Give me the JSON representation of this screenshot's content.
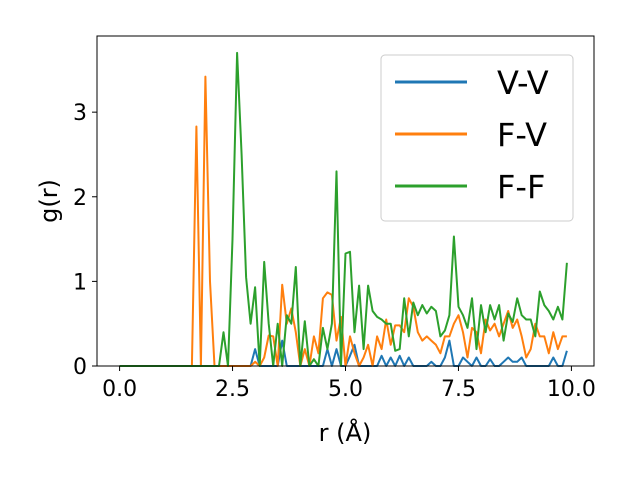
{
  "chart_data": {
    "type": "line",
    "title": "",
    "xlabel": "r (Å)",
    "ylabel": "g(r)",
    "xlim": [
      -0.5,
      10.5
    ],
    "ylim": [
      0,
      3.9
    ],
    "xticks": [
      0.0,
      2.5,
      5.0,
      7.5,
      10.0
    ],
    "xtick_labels": [
      "0.0",
      "2.5",
      "5.0",
      "7.5",
      "10.0"
    ],
    "yticks": [
      0,
      1,
      2,
      3
    ],
    "ytick_labels": [
      "0",
      "1",
      "2",
      "3"
    ],
    "grid": false,
    "legend_position": "top-right",
    "series": [
      {
        "name": "V-V",
        "color": "#1f77b4",
        "x": [
          0.0,
          1.0,
          2.0,
          2.9,
          3.0,
          3.1,
          3.2,
          3.3,
          3.4,
          3.5,
          3.6,
          3.7,
          3.8,
          3.9,
          4.0,
          4.1,
          4.2,
          4.3,
          4.4,
          4.5,
          4.6,
          4.7,
          4.8,
          4.9,
          5.0,
          5.1,
          5.2,
          5.3,
          5.4,
          5.5,
          5.6,
          5.7,
          5.8,
          5.9,
          6.0,
          6.1,
          6.2,
          6.3,
          6.4,
          6.5,
          6.6,
          6.7,
          6.8,
          6.9,
          7.0,
          7.1,
          7.2,
          7.3,
          7.4,
          7.5,
          7.6,
          7.7,
          7.8,
          7.9,
          8.0,
          8.1,
          8.2,
          8.3,
          8.4,
          8.5,
          8.6,
          8.7,
          8.8,
          8.9,
          9.0,
          9.1,
          9.2,
          9.3,
          9.4,
          9.5,
          9.6,
          9.7,
          9.8,
          9.9
        ],
        "values": [
          0,
          0,
          0,
          0,
          0.2,
          0,
          0,
          0,
          0,
          0,
          0.3,
          0,
          0,
          0,
          0,
          0,
          0,
          0,
          0,
          0,
          0.2,
          0,
          0.2,
          0,
          0,
          0.12,
          0.25,
          0,
          0,
          0,
          0,
          0,
          0.12,
          0,
          0.1,
          0,
          0.12,
          0,
          0.1,
          0,
          0,
          0,
          0,
          0.05,
          0,
          0,
          0.1,
          0.3,
          0,
          0,
          0.1,
          0.05,
          0,
          0.1,
          0,
          0,
          0.08,
          0,
          0,
          0.05,
          0.1,
          0.05,
          0.05,
          0.1,
          0,
          0,
          0,
          0,
          0,
          0,
          0.1,
          0,
          0,
          0.18
        ]
      },
      {
        "name": "F-V",
        "color": "#ff7f0e",
        "x": [
          0.0,
          1.0,
          1.6,
          1.7,
          1.8,
          1.9,
          2.0,
          2.1,
          2.2,
          2.3,
          2.4,
          2.5,
          2.6,
          2.7,
          2.8,
          2.9,
          3.0,
          3.1,
          3.2,
          3.3,
          3.4,
          3.5,
          3.6,
          3.7,
          3.8,
          3.9,
          4.0,
          4.1,
          4.2,
          4.3,
          4.4,
          4.5,
          4.6,
          4.7,
          4.8,
          4.9,
          5.0,
          5.1,
          5.2,
          5.3,
          5.4,
          5.5,
          5.6,
          5.7,
          5.8,
          5.9,
          6.0,
          6.1,
          6.2,
          6.3,
          6.4,
          6.5,
          6.6,
          6.7,
          6.8,
          6.9,
          7.0,
          7.1,
          7.2,
          7.3,
          7.4,
          7.5,
          7.6,
          7.7,
          7.8,
          7.9,
          8.0,
          8.1,
          8.2,
          8.3,
          8.4,
          8.5,
          8.6,
          8.7,
          8.8,
          8.9,
          9.0,
          9.1,
          9.2,
          9.3,
          9.4,
          9.5,
          9.6,
          9.7,
          9.8,
          9.9
        ],
        "values": [
          0,
          0,
          0,
          2.83,
          0,
          3.42,
          1.0,
          0,
          0,
          0,
          0,
          0,
          0,
          0,
          0,
          0,
          0.05,
          0,
          0.1,
          0.36,
          0.35,
          0,
          0.96,
          0.5,
          0.68,
          0.4,
          0,
          0.2,
          0,
          0.35,
          0.15,
          0.8,
          0.87,
          0.84,
          0.3,
          0.58,
          0,
          0.35,
          0.15,
          0,
          0.1,
          0.25,
          0,
          0.35,
          0.2,
          0.55,
          0.25,
          0.48,
          0.48,
          0.4,
          0.8,
          0.7,
          0.4,
          0.3,
          0.35,
          0.3,
          0.25,
          0.15,
          0.35,
          0.35,
          0.5,
          0.6,
          0.4,
          0.1,
          0.45,
          0.4,
          0.15,
          0.55,
          0.42,
          0.5,
          0.35,
          0.5,
          0.65,
          0.45,
          0.55,
          0.35,
          0.1,
          0.2,
          0.5,
          0.35,
          0.35,
          0.15,
          0.4,
          0.2,
          0.35,
          0.35
        ]
      },
      {
        "name": "F-F",
        "color": "#2ca02c",
        "x": [
          0.0,
          1.0,
          2.0,
          2.2,
          2.3,
          2.4,
          2.5,
          2.6,
          2.7,
          2.8,
          2.9,
          3.0,
          3.1,
          3.2,
          3.3,
          3.4,
          3.5,
          3.6,
          3.7,
          3.8,
          3.9,
          4.0,
          4.1,
          4.2,
          4.3,
          4.4,
          4.5,
          4.6,
          4.7,
          4.8,
          4.9,
          5.0,
          5.1,
          5.2,
          5.3,
          5.4,
          5.5,
          5.6,
          5.7,
          5.8,
          5.9,
          6.0,
          6.1,
          6.2,
          6.3,
          6.4,
          6.5,
          6.6,
          6.7,
          6.8,
          6.9,
          7.0,
          7.1,
          7.2,
          7.3,
          7.4,
          7.5,
          7.6,
          7.7,
          7.8,
          7.9,
          8.0,
          8.1,
          8.2,
          8.3,
          8.4,
          8.5,
          8.6,
          8.7,
          8.8,
          8.9,
          9.0,
          9.1,
          9.2,
          9.3,
          9.4,
          9.5,
          9.6,
          9.7,
          9.8,
          9.9
        ],
        "values": [
          0,
          0,
          0,
          0,
          0.4,
          0,
          1.5,
          3.7,
          2.5,
          1.05,
          0.5,
          0.93,
          0,
          1.23,
          0.5,
          0,
          0.5,
          0,
          0.6,
          0.5,
          1.17,
          0,
          0.53,
          0,
          0.08,
          0,
          0.45,
          0.2,
          0.5,
          2.3,
          0,
          1.33,
          1.35,
          0.4,
          0.95,
          0.2,
          0.95,
          0.65,
          0.58,
          0.55,
          0.5,
          0.5,
          0.18,
          0.2,
          0.8,
          0.35,
          0.75,
          0.6,
          0.72,
          0.62,
          0.7,
          0.65,
          0.35,
          0.42,
          0.6,
          1.53,
          0.7,
          0.6,
          0.45,
          0.8,
          0.2,
          0.72,
          0.4,
          0.72,
          0.55,
          0.72,
          0.3,
          0.62,
          0.52,
          0.8,
          0.6,
          0.55,
          0.55,
          0.35,
          0.88,
          0.72,
          0.65,
          0.55,
          0.7,
          0.55,
          1.22
        ]
      }
    ]
  }
}
